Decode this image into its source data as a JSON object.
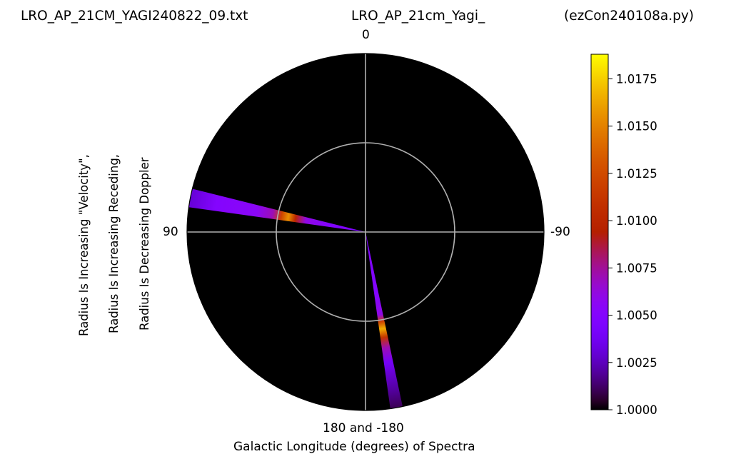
{
  "titles": {
    "left": "LRO_AP_21CM_YAGI240822_09.txt",
    "center": "LRO_AP_21cm_Yagi_",
    "right": "(ezCon240108a.py)"
  },
  "ylabel_lines": [
    "Radius Is Increasing \"Velocity\",",
    "Radius Is Increasing Receding,",
    "Radius Is Decreasing Doppler"
  ],
  "xlabel": "Galactic Longitude (degrees) of Spectra",
  "angle_labels": {
    "top": "0",
    "left": "90",
    "right": "-90",
    "bottom": "180 and -180"
  },
  "colors": {
    "background": "#000000",
    "grid": "#b0b0b0"
  },
  "chart_data": {
    "type": "heatmap",
    "projection": "polar",
    "theta_zero": "top",
    "theta_direction": "counterclockwise",
    "theta_unit": "galactic longitude (degrees)",
    "grid": true,
    "colormap": "gnuplot",
    "colorbar": {
      "min": 1.0,
      "max": 1.0188,
      "ticks": [
        1.0,
        1.0025,
        1.005,
        1.0075,
        1.01,
        1.0125,
        1.015,
        1.0175
      ],
      "tick_labels": [
        "1.0000",
        "1.0025",
        "1.0050",
        "1.0075",
        "1.0100",
        "1.0125",
        "1.0150",
        "1.0175"
      ],
      "placement": "right"
    },
    "wedges": [
      {
        "longitude_range": [
          76,
          82
        ],
        "profile": [
          [
            0.0,
            1.0045
          ],
          [
            0.2,
            1.0048
          ],
          [
            0.34,
            1.006
          ],
          [
            0.4,
            1.01
          ],
          [
            0.44,
            1.0155
          ],
          [
            0.48,
            1.012
          ],
          [
            0.53,
            1.007
          ],
          [
            0.62,
            1.0055
          ],
          [
            0.85,
            1.005
          ],
          [
            1.0,
            1.003
          ]
        ]
      },
      {
        "longitude_range": [
          188,
          192
        ],
        "profile": [
          [
            0.0,
            1.0045
          ],
          [
            0.35,
            1.005
          ],
          [
            0.47,
            1.006
          ],
          [
            0.51,
            1.012
          ],
          [
            0.55,
            1.0165
          ],
          [
            0.6,
            1.011
          ],
          [
            0.66,
            1.007
          ],
          [
            0.74,
            1.004
          ],
          [
            0.9,
            1.002
          ],
          [
            1.0,
            1.001
          ]
        ]
      }
    ]
  }
}
